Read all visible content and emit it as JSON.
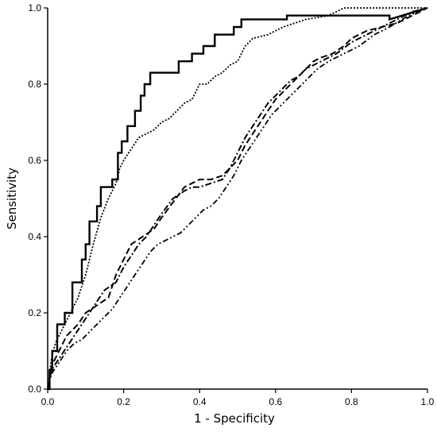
{
  "chart_data": {
    "type": "line",
    "title": "",
    "xlabel": "1 - Specificity",
    "ylabel": "Sensitivity",
    "xlim": [
      0,
      1
    ],
    "ylim": [
      0,
      1
    ],
    "xticks": [
      "0.0",
      "0.2",
      "0.4",
      "0.6",
      "0.8",
      "1.0"
    ],
    "yticks": [
      "0.0",
      "0.2",
      "0.4",
      "0.6",
      "0.8",
      "1.0"
    ],
    "grid": false,
    "legend": "none",
    "series": [
      {
        "style": "solid",
        "x": [
          0.0,
          0.005,
          0.005,
          0.012,
          0.012,
          0.025,
          0.025,
          0.045,
          0.045,
          0.065,
          0.065,
          0.09,
          0.09,
          0.1,
          0.1,
          0.11,
          0.11,
          0.13,
          0.13,
          0.14,
          0.14,
          0.17,
          0.17,
          0.185,
          0.185,
          0.195,
          0.195,
          0.21,
          0.21,
          0.23,
          0.23,
          0.245,
          0.245,
          0.255,
          0.255,
          0.27,
          0.27,
          0.3,
          0.3,
          0.345,
          0.345,
          0.38,
          0.38,
          0.41,
          0.41,
          0.44,
          0.44,
          0.49,
          0.49,
          0.51,
          0.51,
          0.53,
          0.53,
          0.63,
          0.63,
          0.72,
          0.72,
          0.9,
          0.9,
          1.0
        ],
        "y": [
          0.0,
          0.0,
          0.05,
          0.05,
          0.1,
          0.1,
          0.17,
          0.17,
          0.2,
          0.2,
          0.28,
          0.28,
          0.34,
          0.34,
          0.38,
          0.38,
          0.44,
          0.44,
          0.48,
          0.48,
          0.53,
          0.53,
          0.55,
          0.55,
          0.62,
          0.62,
          0.65,
          0.65,
          0.69,
          0.69,
          0.73,
          0.73,
          0.77,
          0.77,
          0.8,
          0.8,
          0.83,
          0.83,
          0.83,
          0.83,
          0.86,
          0.86,
          0.88,
          0.88,
          0.9,
          0.9,
          0.93,
          0.93,
          0.95,
          0.95,
          0.97,
          0.97,
          0.97,
          0.97,
          0.98,
          0.98,
          0.98,
          0.98,
          0.97,
          1.0
        ]
      },
      {
        "style": "dotted",
        "x": [
          0.0,
          0.01,
          0.02,
          0.04,
          0.06,
          0.08,
          0.1,
          0.12,
          0.14,
          0.16,
          0.18,
          0.19,
          0.2,
          0.22,
          0.24,
          0.26,
          0.28,
          0.3,
          0.32,
          0.34,
          0.36,
          0.38,
          0.4,
          0.42,
          0.44,
          0.46,
          0.48,
          0.5,
          0.52,
          0.54,
          0.58,
          0.62,
          0.68,
          0.74,
          0.78,
          0.84,
          0.9,
          0.96,
          1.0
        ],
        "y": [
          0.0,
          0.08,
          0.12,
          0.16,
          0.2,
          0.24,
          0.3,
          0.38,
          0.45,
          0.5,
          0.54,
          0.58,
          0.6,
          0.63,
          0.66,
          0.67,
          0.68,
          0.7,
          0.71,
          0.73,
          0.75,
          0.76,
          0.8,
          0.8,
          0.82,
          0.83,
          0.85,
          0.86,
          0.9,
          0.92,
          0.93,
          0.95,
          0.97,
          0.98,
          1.0,
          1.0,
          1.0,
          1.0,
          1.0
        ]
      },
      {
        "style": "dashed",
        "x": [
          0.0,
          0.01,
          0.03,
          0.05,
          0.08,
          0.1,
          0.13,
          0.16,
          0.18,
          0.2,
          0.22,
          0.25,
          0.28,
          0.3,
          0.33,
          0.36,
          0.38,
          0.4,
          0.43,
          0.46,
          0.48,
          0.5,
          0.52,
          0.54,
          0.56,
          0.58,
          0.6,
          0.62,
          0.64,
          0.66,
          0.68,
          0.7,
          0.72,
          0.75,
          0.78,
          0.8,
          0.84,
          0.88,
          0.92,
          0.96,
          1.0
        ],
        "y": [
          0.0,
          0.06,
          0.1,
          0.14,
          0.17,
          0.2,
          0.22,
          0.24,
          0.3,
          0.34,
          0.38,
          0.4,
          0.42,
          0.45,
          0.49,
          0.53,
          0.54,
          0.55,
          0.55,
          0.56,
          0.58,
          0.6,
          0.64,
          0.67,
          0.7,
          0.73,
          0.76,
          0.78,
          0.8,
          0.82,
          0.84,
          0.86,
          0.87,
          0.88,
          0.9,
          0.92,
          0.94,
          0.95,
          0.96,
          0.98,
          1.0
        ]
      },
      {
        "style": "dash-dot",
        "x": [
          0.0,
          0.01,
          0.03,
          0.05,
          0.07,
          0.09,
          0.11,
          0.13,
          0.15,
          0.18,
          0.2,
          0.22,
          0.24,
          0.26,
          0.28,
          0.3,
          0.33,
          0.36,
          0.38,
          0.4,
          0.43,
          0.46,
          0.48,
          0.5,
          0.52,
          0.54,
          0.56,
          0.58,
          0.6,
          0.62,
          0.64,
          0.66,
          0.68,
          0.7,
          0.72,
          0.74,
          0.76,
          0.8,
          0.84,
          0.88,
          0.92,
          0.96,
          1.0
        ],
        "y": [
          0.0,
          0.05,
          0.08,
          0.11,
          0.14,
          0.17,
          0.2,
          0.23,
          0.26,
          0.28,
          0.32,
          0.35,
          0.38,
          0.4,
          0.43,
          0.46,
          0.5,
          0.52,
          0.53,
          0.53,
          0.54,
          0.55,
          0.58,
          0.62,
          0.66,
          0.69,
          0.72,
          0.75,
          0.77,
          0.79,
          0.81,
          0.82,
          0.84,
          0.85,
          0.86,
          0.87,
          0.88,
          0.91,
          0.93,
          0.95,
          0.97,
          0.99,
          1.0
        ]
      },
      {
        "style": "dash-dot-dot",
        "x": [
          0.0,
          0.01,
          0.03,
          0.05,
          0.07,
          0.09,
          0.11,
          0.13,
          0.15,
          0.17,
          0.19,
          0.21,
          0.23,
          0.25,
          0.27,
          0.29,
          0.31,
          0.33,
          0.35,
          0.37,
          0.39,
          0.41,
          0.43,
          0.45,
          0.47,
          0.49,
          0.51,
          0.53,
          0.55,
          0.57,
          0.59,
          0.61,
          0.63,
          0.65,
          0.67,
          0.69,
          0.71,
          0.74,
          0.78,
          0.82,
          0.86,
          0.9,
          0.95,
          1.0
        ],
        "y": [
          0.0,
          0.04,
          0.07,
          0.1,
          0.12,
          0.13,
          0.15,
          0.17,
          0.19,
          0.21,
          0.24,
          0.27,
          0.3,
          0.33,
          0.36,
          0.38,
          0.39,
          0.4,
          0.41,
          0.43,
          0.45,
          0.47,
          0.48,
          0.5,
          0.53,
          0.56,
          0.6,
          0.63,
          0.66,
          0.69,
          0.72,
          0.74,
          0.76,
          0.78,
          0.8,
          0.82,
          0.84,
          0.86,
          0.88,
          0.9,
          0.93,
          0.95,
          0.98,
          1.0
        ]
      }
    ]
  }
}
